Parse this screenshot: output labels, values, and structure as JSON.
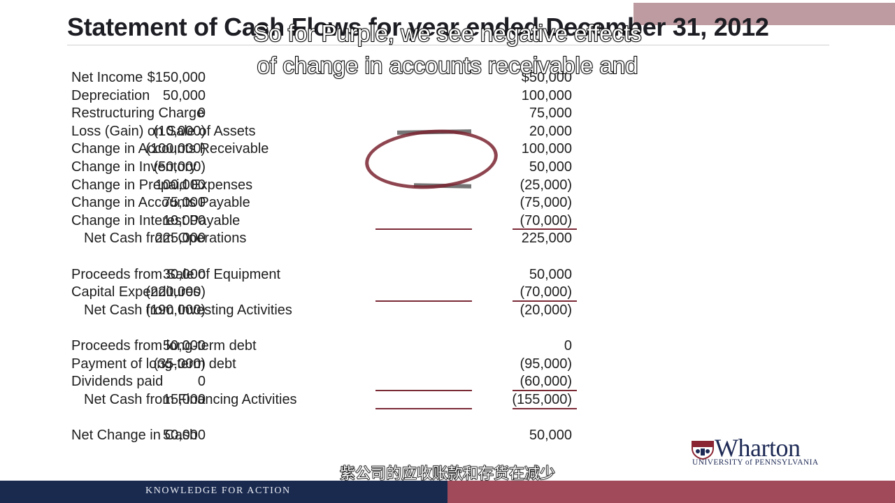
{
  "slide": {
    "title": "Statement of Cash Flows for year ended December 31, 2012",
    "caption_line1": "So for Purple, we see negative effects",
    "caption_line2": "of change in accounts receivable and",
    "subtitle_zh": "紫公司的应收账款和存货在减少",
    "footer_text": "KNOWLEDGE FOR ACTION",
    "logo_name": "Wharton",
    "logo_subline": "UNIVERSITY of PENNSYLVANIA",
    "logo_icon": "penn-shield-icon"
  },
  "statement": {
    "operations": [
      {
        "label": "Net Income",
        "col1": "$150,000",
        "col2": "$50,000"
      },
      {
        "label": "Depreciation",
        "col1": "50,000",
        "col2": "100,000"
      },
      {
        "label": "Restructuring Charge",
        "col1": "0",
        "col2": "75,000"
      },
      {
        "label": "Loss (Gain) on Sale of Assets",
        "col1": "(10,000)",
        "col2": "20,000"
      },
      {
        "label": "Change in Accounts Receivable",
        "col1": "(100,000)",
        "col2": "100,000"
      },
      {
        "label": "Change in Inventory",
        "col1": "(50,000)",
        "col2": "50,000"
      },
      {
        "label": "Change in Prepaid Expenses",
        "col1": "100,000",
        "col2": "(25,000)"
      },
      {
        "label": "Change in Accounts Payable",
        "col1": "75,000",
        "col2": "(75,000)"
      },
      {
        "label": "Change in Interest Payable",
        "col1": "10,000",
        "col2": "(70,000)"
      }
    ],
    "operations_total": {
      "label": "Net Cash from Operations",
      "col1": "225,000",
      "col2": "225,000"
    },
    "investing": [
      {
        "label": "Proceeds from Sale of Equipment",
        "col1": "30,000",
        "col2": "50,000"
      },
      {
        "label": "Capital Expenditures",
        "col1": "(220,000)",
        "col2": "(70,000)"
      }
    ],
    "investing_total": {
      "label": "Net Cash from Investing Activities",
      "col1": "(190,000)",
      "col2": "(20,000)"
    },
    "financing": [
      {
        "label": "Proceeds from long-term debt",
        "col1": "50,000",
        "col2": "0"
      },
      {
        "label": "Payment of long-term debt",
        "col1": "(35,000)",
        "col2": "(95,000)"
      },
      {
        "label": "Dividends paid",
        "col1": "0",
        "col2": "(60,000)"
      }
    ],
    "financing_total": {
      "label": "Net Cash from Financing Activities",
      "col1": "15,000",
      "col2": "(155,000)"
    },
    "net_change": {
      "label": "Net Change in Cash",
      "col1": "50,000",
      "col2": "50,000"
    }
  },
  "colors": {
    "rule": "#7a2a35",
    "annotation": "#7a2530",
    "footer_left": "#1a2a4f",
    "footer_right": "#a04a5a",
    "top_bar": "#b3898f"
  }
}
